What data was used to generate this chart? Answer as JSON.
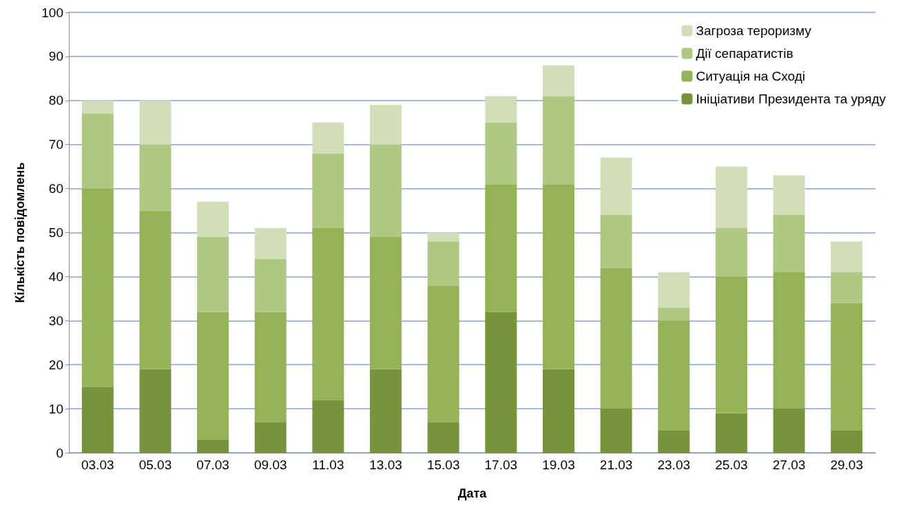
{
  "chart_data": {
    "type": "bar",
    "stacked": true,
    "xlabel": "Дата",
    "ylabel": "Кількість повідомлень",
    "categories": [
      "03.03",
      "05.03",
      "07.03",
      "09.03",
      "11.03",
      "13.03",
      "15.03",
      "17.03",
      "19.03",
      "21.03",
      "23.03",
      "25.03",
      "27.03",
      "29.03"
    ],
    "series": [
      {
        "name": "Ініціативи Президента та уряду",
        "color": "#77933c",
        "values": [
          15,
          19,
          3,
          7,
          12,
          19,
          7,
          32,
          19,
          10,
          5,
          9,
          10,
          5
        ]
      },
      {
        "name": "Ситуація на Сході",
        "color": "#93b356",
        "values": [
          45,
          36,
          29,
          25,
          39,
          30,
          31,
          29,
          42,
          32,
          25,
          31,
          31,
          29
        ]
      },
      {
        "name": "Дії сепаратистів",
        "color": "#afc884",
        "values": [
          17,
          15,
          17,
          12,
          17,
          21,
          10,
          14,
          20,
          12,
          3,
          11,
          13,
          7
        ]
      },
      {
        "name": "Загроза тероризму",
        "color": "#d1deb9",
        "values": [
          3,
          10,
          8,
          7,
          7,
          9,
          2,
          6,
          7,
          13,
          8,
          14,
          9,
          7
        ]
      }
    ],
    "ylim": [
      0,
      100
    ],
    "yticks": [
      0,
      10,
      20,
      30,
      40,
      50,
      60,
      70,
      80,
      90,
      100
    ],
    "grid": "y",
    "legend": "top right"
  }
}
